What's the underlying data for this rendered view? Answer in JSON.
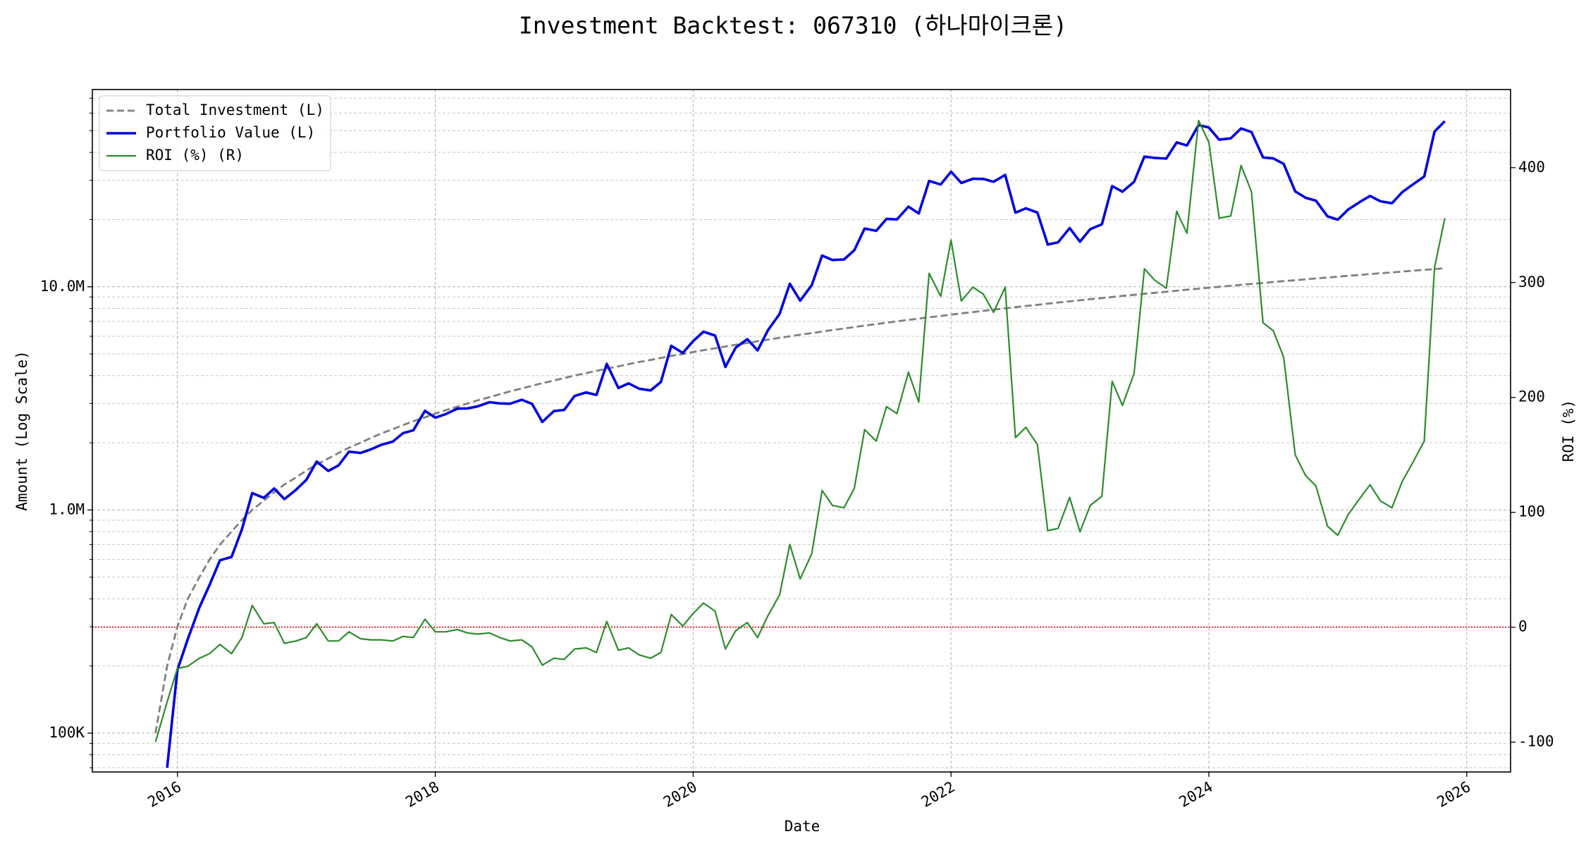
{
  "chart_data": {
    "type": "line",
    "title": "Investment Backtest: 067310 (하나마이크론)",
    "x_label": "Date",
    "y_label": "Amount (Log Scale)",
    "y2_label": "ROI (%)",
    "y_label_color": "#0000cc",
    "y2_label_color": "#228b22",
    "ylog": true,
    "grid": true,
    "legend": "upper left",
    "xlim": [
      2015.34,
      2026.34
    ],
    "xticks": [
      2016,
      2018,
      2020,
      2022,
      2024,
      2026
    ],
    "ylim": [
      67000,
      76500000
    ],
    "yticks": [
      {
        "value": 100000,
        "label": "100K"
      },
      {
        "value": 1000000,
        "label": "1.0M"
      },
      {
        "value": 10000000,
        "label": "10.0M"
      }
    ],
    "yticks_minor": [
      70000,
      80000,
      90000,
      200000,
      300000,
      400000,
      500000,
      600000,
      700000,
      800000,
      900000,
      2000000,
      3000000,
      4000000,
      5000000,
      6000000,
      7000000,
      8000000,
      9000000,
      20000000,
      30000000,
      40000000,
      50000000,
      60000000,
      70000000
    ],
    "y2lim": [
      -126,
      468
    ],
    "y2ticks": [
      -100,
      0,
      100,
      200,
      300,
      400
    ],
    "reference_line": {
      "axis": "y2",
      "value": 0,
      "color": "#e00000"
    },
    "x": [
      2015.83,
      2015.92,
      2016.0,
      2016.08,
      2016.17,
      2016.25,
      2016.33,
      2016.42,
      2016.5,
      2016.58,
      2016.67,
      2016.75,
      2016.83,
      2016.92,
      2017.0,
      2017.08,
      2017.17,
      2017.25,
      2017.33,
      2017.42,
      2017.5,
      2017.58,
      2017.67,
      2017.75,
      2017.83,
      2017.92,
      2018.0,
      2018.08,
      2018.17,
      2018.25,
      2018.33,
      2018.42,
      2018.5,
      2018.58,
      2018.67,
      2018.75,
      2018.83,
      2018.92,
      2019.0,
      2019.08,
      2019.17,
      2019.25,
      2019.33,
      2019.42,
      2019.5,
      2019.58,
      2019.67,
      2019.75,
      2019.83,
      2019.92,
      2020.0,
      2020.08,
      2020.17,
      2020.25,
      2020.33,
      2020.42,
      2020.5,
      2020.58,
      2020.67,
      2020.75,
      2020.83,
      2020.92,
      2021.0,
      2021.08,
      2021.17,
      2021.25,
      2021.33,
      2021.42,
      2021.5,
      2021.58,
      2021.67,
      2021.75,
      2021.83,
      2021.92,
      2022.0,
      2022.08,
      2022.17,
      2022.25,
      2022.33,
      2022.42,
      2022.5,
      2022.58,
      2022.67,
      2022.75,
      2022.83,
      2022.92,
      2023.0,
      2023.08,
      2023.17,
      2023.25,
      2023.33,
      2023.42,
      2023.5,
      2023.58,
      2023.67,
      2023.75,
      2023.83,
      2023.92,
      2024.0,
      2024.08,
      2024.17,
      2024.25,
      2024.33,
      2024.42,
      2024.5,
      2024.58,
      2024.67,
      2024.75,
      2024.83,
      2024.92,
      2025.0,
      2025.08,
      2025.17,
      2025.25,
      2025.33,
      2025.42,
      2025.5,
      2025.58,
      2025.67,
      2025.75,
      2025.83
    ],
    "series": [
      {
        "name": "Total Investment (L)",
        "color": "#808080",
        "linestyle": "dashed",
        "width": 2.8,
        "axis": "y",
        "values": [
          100000,
          200000,
          300000,
          400000,
          500000,
          600000,
          700000,
          800000,
          900000,
          1000000,
          1100000,
          1200000,
          1300000,
          1400000,
          1500000,
          1600000,
          1700000,
          1800000,
          1900000,
          2000000,
          2100000,
          2200000,
          2300000,
          2400000,
          2500000,
          2600000,
          2700000,
          2800000,
          2900000,
          3000000,
          3100000,
          3200000,
          3300000,
          3400000,
          3500000,
          3600000,
          3700000,
          3800000,
          3900000,
          4000000,
          4100000,
          4200000,
          4300000,
          4400000,
          4500000,
          4600000,
          4700000,
          4800000,
          4900000,
          5000000,
          5100000,
          5200000,
          5300000,
          5400000,
          5500000,
          5600000,
          5700000,
          5800000,
          5900000,
          6000000,
          6100000,
          6200000,
          6300000,
          6400000,
          6500000,
          6600000,
          6700000,
          6800000,
          6900000,
          7000000,
          7100000,
          7200000,
          7300000,
          7400000,
          7500000,
          7600000,
          7700000,
          7800000,
          7900000,
          8000000,
          8100000,
          8200000,
          8300000,
          8400000,
          8500000,
          8600000,
          8700000,
          8800000,
          8900000,
          9000000,
          9100000,
          9200000,
          9300000,
          9400000,
          9500000,
          9600000,
          9700000,
          9800000,
          9900000,
          10000000,
          10100000,
          10200000,
          10300000,
          10400000,
          10500000,
          10600000,
          10700000,
          10800000,
          10900000,
          11000000,
          11100000,
          11200000,
          11300000,
          11400000,
          11500000,
          11600000,
          11700000,
          11800000,
          11900000,
          12000000,
          12100000
        ]
      },
      {
        "name": "Portfolio Value (L)",
        "color": "#0000dd",
        "linestyle": "solid",
        "width": 3.6,
        "axis": "y",
        "values": [
          null,
          70000,
          192000,
          264000,
          365000,
          462000,
          595000,
          616000,
          819000,
          1190000,
          1133000,
          1248000,
          1118000,
          1232000,
          1365000,
          1648000,
          1496000,
          1584000,
          1824000,
          1800000,
          1869000,
          1958000,
          2024000,
          2208000,
          2275000,
          2782000,
          2592000,
          2688000,
          2842000,
          2850000,
          2914000,
          3040000,
          3003000,
          2992000,
          3115000,
          2988000,
          2479000,
          2774000,
          2808000,
          3240000,
          3362000,
          3276000,
          4515000,
          3520000,
          3690000,
          3496000,
          3431000,
          3744000,
          5439000,
          5050000,
          5712000,
          6292000,
          6042000,
          4374000,
          5335000,
          5824000,
          5187000,
          6380000,
          7552000,
          10320000,
          8662000,
          10168000,
          13797000,
          13184000,
          13260000,
          14586000,
          18224000,
          17816000,
          20148000,
          20020000,
          22862000,
          21312000,
          29784000,
          28712000,
          32775000,
          29184000,
          30492000,
          30420000,
          29546000,
          31680000,
          21465000,
          22468000,
          21497000,
          15456000,
          15810000,
          18318000,
          15921000,
          18128000,
          19046000,
          28260000,
          26663000,
          29532000,
          38316000,
          37788000,
          37525000,
          44352000,
          42971000,
          53018000,
          51678000,
          45600000,
          46258000,
          51204000,
          49337000,
          37960000,
          37590000,
          35510000,
          26750000,
          25056000,
          24307000,
          20680000,
          19980000,
          22176000,
          23956000,
          25536000,
          24150000,
          23664000,
          26559000,
          28674000,
          31178000,
          49560000,
          55176000
        ]
      },
      {
        "name": "ROI (%) (R)",
        "color": "#2e8b2e",
        "linestyle": "solid",
        "width": 2.2,
        "axis": "y2",
        "values": [
          -100,
          -65,
          -36,
          -34,
          -27,
          -23,
          -15,
          -23,
          -9,
          19,
          3,
          4,
          -14,
          -12,
          -9,
          3,
          -12,
          -12,
          -4,
          -10,
          -11,
          -11,
          -12,
          -8,
          -9,
          7,
          -4,
          -4,
          -2,
          -5,
          -6,
          -5,
          -9,
          -12,
          -11,
          -17,
          -33,
          -27,
          -28,
          -19,
          -18,
          -22,
          5,
          -20,
          -18,
          -24,
          -27,
          -22,
          11,
          1,
          12,
          21,
          14,
          -19,
          -3,
          4,
          -9,
          10,
          28,
          72,
          42,
          64,
          119,
          106,
          104,
          121,
          172,
          162,
          192,
          186,
          222,
          196,
          308,
          288,
          337,
          284,
          296,
          290,
          274,
          296,
          165,
          174,
          159,
          84,
          86,
          113,
          83,
          106,
          114,
          214,
          193,
          221,
          312,
          302,
          295,
          362,
          343,
          441,
          422,
          356,
          358,
          402,
          379,
          265,
          258,
          235,
          150,
          132,
          123,
          88,
          80,
          98,
          112,
          124,
          110,
          104,
          127,
          143,
          162,
          313,
          356
        ]
      }
    ]
  }
}
